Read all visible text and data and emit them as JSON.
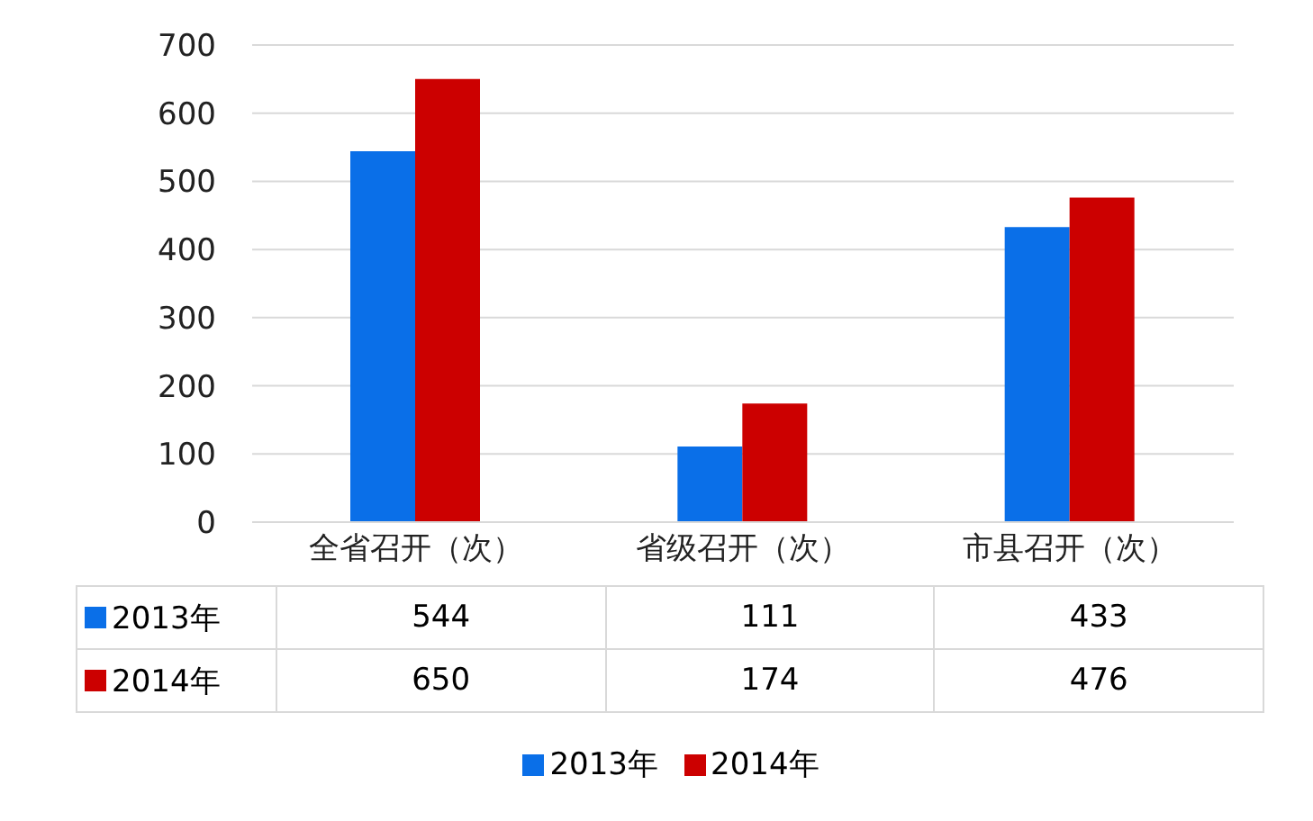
{
  "chart_data": {
    "type": "bar",
    "categories": [
      "全省召开（次）",
      "省级召开（次）",
      "市县召开（次）"
    ],
    "series": [
      {
        "name": "2013年",
        "color": "#0a6fe8",
        "values": [
          544,
          111,
          433
        ]
      },
      {
        "name": "2014年",
        "color": "#cc0000",
        "values": [
          650,
          174,
          476
        ]
      }
    ],
    "ylim": [
      0,
      700
    ],
    "yticks": [
      0,
      100,
      200,
      300,
      400,
      500,
      600,
      700
    ],
    "grid": "y",
    "legend": "bottom",
    "data_labels": true
  }
}
